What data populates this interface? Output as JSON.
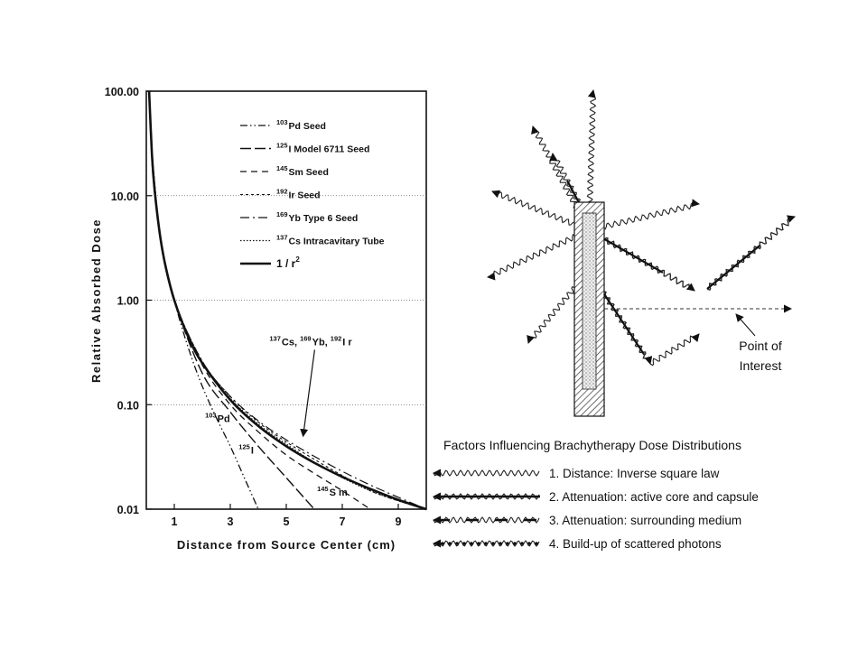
{
  "chart_data": {
    "type": "line",
    "xlabel": "Distance from Source Center (cm)",
    "ylabel": "Relative Absorbed Dose",
    "xlim": [
      0,
      10
    ],
    "ylim": [
      0.01,
      100
    ],
    "yscale": "log",
    "grid": "dotted horizontal",
    "legend_placement": "top-center",
    "x_ticks": [
      "1",
      "3",
      "5",
      "7",
      "9"
    ],
    "x_tick_values": [
      1,
      3,
      5,
      7,
      9
    ],
    "y_ticks": [
      "100.00",
      "10.00",
      "1.00",
      "0.10",
      "0.01"
    ],
    "y_tick_values": [
      100,
      10,
      1,
      0.1,
      0.01
    ],
    "series": [
      {
        "key": "pd103",
        "mass": "103",
        "name": "Pd Seed",
        "dash": "8 3 1.5 3 1.5 3",
        "width": 1.3,
        "points": [
          [
            0.2,
            25
          ],
          [
            0.5,
            4
          ],
          [
            1,
            1
          ],
          [
            1.5,
            0.35
          ],
          [
            2,
            0.15
          ],
          [
            2.5,
            0.075
          ],
          [
            3,
            0.04
          ],
          [
            3.5,
            0.02
          ],
          [
            4,
            0.01
          ]
        ]
      },
      {
        "key": "i125",
        "mass": "125",
        "name": "I Model 6711 Seed",
        "dash": "12 4",
        "width": 1.4,
        "points": [
          [
            0.2,
            25
          ],
          [
            0.5,
            4
          ],
          [
            1,
            1
          ],
          [
            2,
            0.2
          ],
          [
            3,
            0.085
          ],
          [
            4,
            0.04
          ],
          [
            5,
            0.02
          ],
          [
            6,
            0.01
          ]
        ]
      },
      {
        "key": "sm145",
        "mass": "145",
        "name": "Sm Seed",
        "dash": "7 5",
        "width": 1.3,
        "points": [
          [
            0.2,
            25
          ],
          [
            0.5,
            4
          ],
          [
            1,
            1
          ],
          [
            2,
            0.24
          ],
          [
            3,
            0.1
          ],
          [
            4,
            0.055
          ],
          [
            5,
            0.033
          ],
          [
            6,
            0.022
          ],
          [
            7,
            0.015
          ],
          [
            8,
            0.01
          ]
        ]
      },
      {
        "key": "ir192",
        "mass": "192",
        "name": "Ir Seed",
        "dash": "3 3",
        "width": 1.1,
        "points": [
          [
            0.2,
            25
          ],
          [
            0.5,
            4
          ],
          [
            1,
            1
          ],
          [
            2,
            0.26
          ],
          [
            3,
            0.12
          ],
          [
            4,
            0.068
          ],
          [
            5,
            0.044
          ],
          [
            6,
            0.03
          ],
          [
            7,
            0.021
          ],
          [
            8,
            0.015
          ],
          [
            9,
            0.012
          ],
          [
            10,
            0.01
          ]
        ]
      },
      {
        "key": "yb169",
        "mass": "169",
        "name": "Yb Type 6 Seed",
        "dash": "10 4 2 4",
        "width": 1.2,
        "points": [
          [
            0.2,
            25
          ],
          [
            0.5,
            4
          ],
          [
            1,
            1
          ],
          [
            2,
            0.26
          ],
          [
            3,
            0.12
          ],
          [
            4,
            0.07
          ],
          [
            5,
            0.046
          ],
          [
            6,
            0.032
          ],
          [
            7,
            0.023
          ],
          [
            8,
            0.017
          ],
          [
            9,
            0.013
          ],
          [
            10,
            0.01
          ]
        ]
      },
      {
        "key": "cs137",
        "mass": "137",
        "name": "Cs Intracavitary Tube",
        "dash": "1.5 2",
        "width": 1.2,
        "points": [
          [
            0.2,
            20
          ],
          [
            0.5,
            3.8
          ],
          [
            1,
            1
          ],
          [
            2,
            0.25
          ],
          [
            3,
            0.115
          ],
          [
            4,
            0.065
          ],
          [
            5,
            0.042
          ],
          [
            6,
            0.028
          ],
          [
            7,
            0.02
          ],
          [
            8,
            0.015
          ],
          [
            9,
            0.012
          ],
          [
            10,
            0.01
          ]
        ]
      },
      {
        "key": "inv_sq",
        "name": "1 / r",
        "superscript": "2",
        "dash": "",
        "width": 2.6,
        "points": [
          [
            0.1,
            100
          ],
          [
            0.2,
            25
          ],
          [
            0.3,
            11.1
          ],
          [
            0.5,
            4
          ],
          [
            0.7,
            2.04
          ],
          [
            1,
            1
          ],
          [
            1.5,
            0.444
          ],
          [
            2,
            0.25
          ],
          [
            3,
            0.111
          ],
          [
            4,
            0.0625
          ],
          [
            5,
            0.04
          ],
          [
            6,
            0.0278
          ],
          [
            7,
            0.0204
          ],
          [
            8,
            0.0156
          ],
          [
            9,
            0.0123
          ],
          [
            10,
            0.01
          ]
        ]
      }
    ],
    "curve_labels": [
      {
        "key": "pd",
        "mass": "103",
        "symbol": "Pd",
        "x": 2.1,
        "y": 0.068
      },
      {
        "key": "i",
        "mass": "125",
        "symbol": "I",
        "x": 3.3,
        "y": 0.034
      },
      {
        "key": "sm",
        "mass": "145",
        "symbol": "S m",
        "x": 6.1,
        "y": 0.0135
      },
      {
        "key": "group",
        "parts": [
          {
            "mass": "137",
            "symbol": "Cs, "
          },
          {
            "mass": "169",
            "symbol": "Yb, "
          },
          {
            "mass": "192",
            "symbol": "I r"
          }
        ],
        "x": 4.4,
        "y": 0.37,
        "arrow_to": [
          5.6,
          0.046
        ]
      }
    ]
  },
  "diagram": {
    "title": "Factors Influencing Brachytherapy Dose Distributions",
    "point_label_line1": "Point of",
    "point_label_line2": "Interest",
    "legend": [
      {
        "style": "wavy",
        "text": "1.  Distance:  Inverse square law"
      },
      {
        "style": "wavy-solid",
        "text": "2.  Attenuation:  active core and capsule"
      },
      {
        "style": "wavy-broken",
        "text": "3.  Attenuation:  surrounding medium"
      },
      {
        "style": "wavy-bead",
        "text": "4.  Build-up of scattered photons"
      }
    ]
  }
}
